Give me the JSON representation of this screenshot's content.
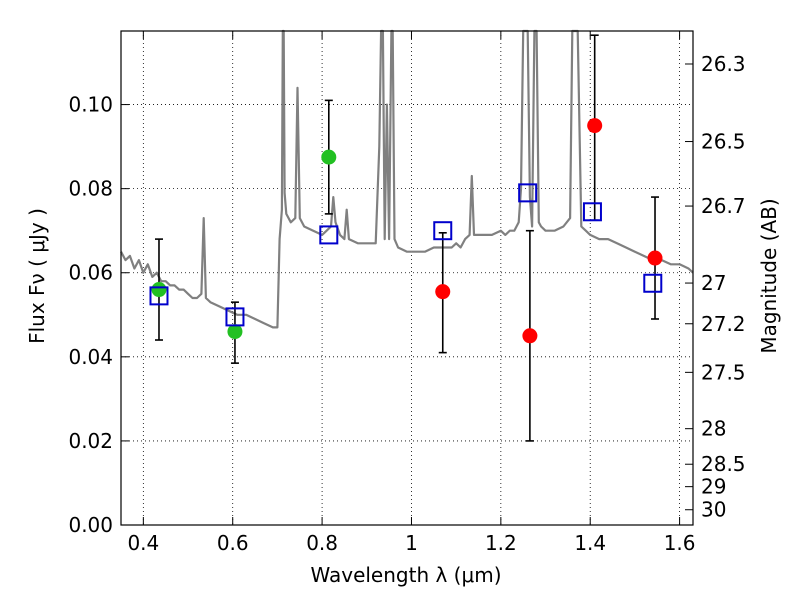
{
  "chart_data": {
    "type": "scatter",
    "xlabel": "Wavelength  λ (μm)",
    "ylabel": "Flux  Fν  ( μJy )",
    "y2label": "Magnitude (AB)",
    "xlim": [
      0.35,
      1.63
    ],
    "ylim": [
      0.0,
      0.1175
    ],
    "grid": true,
    "x_ticks": [
      0.4,
      0.6,
      0.8,
      1.0,
      1.2,
      1.4,
      1.6
    ],
    "x_tick_labels": [
      "0.4",
      "0.6",
      "0.8",
      "1",
      "1.2",
      "1.4",
      "1.6"
    ],
    "y_ticks": [
      0.0,
      0.02,
      0.04,
      0.06,
      0.08,
      0.1
    ],
    "y_tick_labels": [
      "0.00",
      "0.02",
      "0.04",
      "0.06",
      "0.08",
      "0.10"
    ],
    "y2_ticks": [
      {
        "label": "26.3",
        "value": 26.3
      },
      {
        "label": "26.5",
        "value": 26.5
      },
      {
        "label": "26.7",
        "value": 26.7
      },
      {
        "label": "27",
        "value": 27.0
      },
      {
        "label": "27.2",
        "value": 27.2
      },
      {
        "label": "27.5",
        "value": 27.5
      },
      {
        "label": "28",
        "value": 28.0
      },
      {
        "label": "28.5",
        "value": 28.5
      },
      {
        "label": "29",
        "value": 29.0
      },
      {
        "label": "30",
        "value": 30.0
      }
    ],
    "model_spectrum": {
      "color": "#808080",
      "points": [
        [
          0.35,
          0.065
        ],
        [
          0.36,
          0.063
        ],
        [
          0.37,
          0.064
        ],
        [
          0.38,
          0.061
        ],
        [
          0.39,
          0.063
        ],
        [
          0.4,
          0.06
        ],
        [
          0.41,
          0.062
        ],
        [
          0.42,
          0.059
        ],
        [
          0.43,
          0.06
        ],
        [
          0.44,
          0.058
        ],
        [
          0.45,
          0.058
        ],
        [
          0.46,
          0.057
        ],
        [
          0.47,
          0.057
        ],
        [
          0.48,
          0.056
        ],
        [
          0.49,
          0.056
        ],
        [
          0.5,
          0.055
        ],
        [
          0.51,
          0.054
        ],
        [
          0.52,
          0.054
        ],
        [
          0.53,
          0.055
        ],
        [
          0.535,
          0.073
        ],
        [
          0.54,
          0.054
        ],
        [
          0.55,
          0.053
        ],
        [
          0.57,
          0.052
        ],
        [
          0.59,
          0.051
        ],
        [
          0.61,
          0.05
        ],
        [
          0.63,
          0.05
        ],
        [
          0.65,
          0.049
        ],
        [
          0.67,
          0.048
        ],
        [
          0.69,
          0.047
        ],
        [
          0.7,
          0.047
        ],
        [
          0.705,
          0.068
        ],
        [
          0.71,
          0.075
        ],
        [
          0.712,
          0.118
        ],
        [
          0.714,
          0.118
        ],
        [
          0.716,
          0.079
        ],
        [
          0.72,
          0.074
        ],
        [
          0.73,
          0.072
        ],
        [
          0.74,
          0.073
        ],
        [
          0.745,
          0.104
        ],
        [
          0.75,
          0.073
        ],
        [
          0.76,
          0.071
        ],
        [
          0.78,
          0.07
        ],
        [
          0.8,
          0.069
        ],
        [
          0.81,
          0.07
        ],
        [
          0.82,
          0.071
        ],
        [
          0.825,
          0.078
        ],
        [
          0.83,
          0.072
        ],
        [
          0.84,
          0.069
        ],
        [
          0.85,
          0.068
        ],
        [
          0.855,
          0.075
        ],
        [
          0.86,
          0.068
        ],
        [
          0.88,
          0.067
        ],
        [
          0.9,
          0.067
        ],
        [
          0.92,
          0.067
        ],
        [
          0.928,
          0.09
        ],
        [
          0.932,
          0.118
        ],
        [
          0.936,
          0.118
        ],
        [
          0.94,
          0.068
        ],
        [
          0.945,
          0.1
        ],
        [
          0.95,
          0.068
        ],
        [
          0.955,
          0.118
        ],
        [
          0.958,
          0.118
        ],
        [
          0.962,
          0.068
        ],
        [
          0.97,
          0.066
        ],
        [
          0.99,
          0.065
        ],
        [
          1.01,
          0.065
        ],
        [
          1.03,
          0.065
        ],
        [
          1.05,
          0.066
        ],
        [
          1.07,
          0.066
        ],
        [
          1.09,
          0.066
        ],
        [
          1.1,
          0.067
        ],
        [
          1.11,
          0.066
        ],
        [
          1.12,
          0.068
        ],
        [
          1.13,
          0.069
        ],
        [
          1.135,
          0.083
        ],
        [
          1.14,
          0.069
        ],
        [
          1.16,
          0.069
        ],
        [
          1.18,
          0.069
        ],
        [
          1.2,
          0.07
        ],
        [
          1.21,
          0.069
        ],
        [
          1.22,
          0.07
        ],
        [
          1.23,
          0.07
        ],
        [
          1.24,
          0.072
        ],
        [
          1.245,
          0.08
        ],
        [
          1.25,
          0.118
        ],
        [
          1.26,
          0.118
        ],
        [
          1.265,
          0.078
        ],
        [
          1.27,
          0.071
        ],
        [
          1.275,
          0.118
        ],
        [
          1.28,
          0.118
        ],
        [
          1.285,
          0.072
        ],
        [
          1.29,
          0.071
        ],
        [
          1.3,
          0.07
        ],
        [
          1.32,
          0.07
        ],
        [
          1.34,
          0.071
        ],
        [
          1.355,
          0.073
        ],
        [
          1.36,
          0.118
        ],
        [
          1.372,
          0.118
        ],
        [
          1.38,
          0.071
        ],
        [
          1.39,
          0.07
        ],
        [
          1.4,
          0.069
        ],
        [
          1.42,
          0.068
        ],
        [
          1.44,
          0.068
        ],
        [
          1.46,
          0.067
        ],
        [
          1.48,
          0.066
        ],
        [
          1.5,
          0.065
        ],
        [
          1.52,
          0.064
        ],
        [
          1.54,
          0.063
        ],
        [
          1.56,
          0.063
        ],
        [
          1.58,
          0.062
        ],
        [
          1.6,
          0.062
        ],
        [
          1.62,
          0.061
        ],
        [
          1.63,
          0.06
        ]
      ]
    },
    "series": [
      {
        "marker": "filled-circle",
        "color": "#22c022",
        "points": [
          {
            "x": 0.435,
            "y": 0.056,
            "err_low": 0.044,
            "err_high": 0.068
          },
          {
            "x": 0.605,
            "y": 0.046,
            "err_low": 0.0385,
            "err_high": 0.053
          },
          {
            "x": 0.815,
            "y": 0.0875,
            "err_low": 0.074,
            "err_high": 0.101
          }
        ]
      },
      {
        "marker": "filled-circle",
        "color": "#ff0000",
        "points": [
          {
            "x": 1.07,
            "y": 0.0555,
            "err_low": 0.041,
            "err_high": 0.0695
          },
          {
            "x": 1.265,
            "y": 0.045,
            "err_low": 0.02,
            "err_high": 0.07
          },
          {
            "x": 1.41,
            "y": 0.095,
            "err_low": 0.0725,
            "err_high": 0.1165
          },
          {
            "x": 1.545,
            "y": 0.0635,
            "err_low": 0.049,
            "err_high": 0.078
          }
        ]
      },
      {
        "marker": "open-square",
        "color": "#0000cc",
        "points": [
          {
            "x": 0.435,
            "y": 0.0545
          },
          {
            "x": 0.605,
            "y": 0.0495
          },
          {
            "x": 0.815,
            "y": 0.069
          },
          {
            "x": 1.07,
            "y": 0.07
          },
          {
            "x": 1.26,
            "y": 0.079
          },
          {
            "x": 1.405,
            "y": 0.0745
          },
          {
            "x": 1.54,
            "y": 0.0575
          }
        ]
      }
    ]
  }
}
